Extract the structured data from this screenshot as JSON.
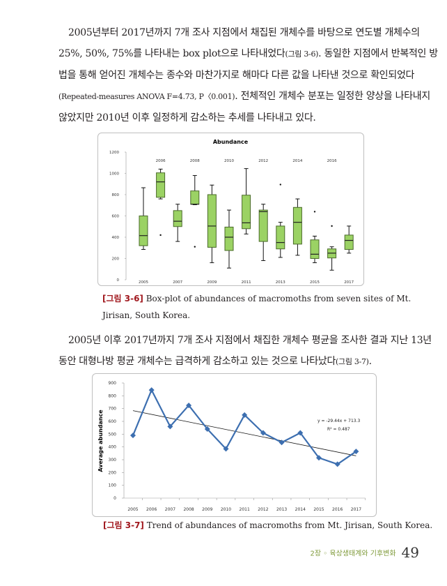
{
  "paragraph1": [
    "2005년부터 2017년까지 7개 조사 지점에서 채집된 개체수를 바탕으로 연도별 개체수의",
    "25%, 50%, 75%를 나타내는 box plot으로 나타내었다",
    "(그림 3-6)",
    ". 동일한 지점에서 반복적인 방",
    "법을 통해 얻어진 개체수는 종수와 마찬가지로 해마다 다른 값을 나타낸 것으로 확인되었다",
    "(Repeated-measures ANOVA F=4.73, P〈0.001)",
    ". 전체적인 개체수 분포는 일정한 양상을 나타내지",
    "않았지만 2010년 이후 일정하게 감소하는 추세를 나타내고 있다."
  ],
  "figure1_caption": {
    "label": "[그림 3-6]",
    "text": " Box-plot of abundances of macromoths from seven sites of Mt.",
    "text2": "Jirisan, South Korea."
  },
  "paragraph2": [
    "2005년 이후 2017년까지 7개 조사 지점에서 채집한 개체수 평균을 조사한 결과 지난 13년",
    "동안 대형나방 평균 개체수는 급격하게 감소하고 있는 것으로 나타났다",
    "(그림 3-7)",
    "."
  ],
  "figure2_caption": {
    "label": "[그림 3-7]",
    "text": " Trend of abundances of macromoths from Mt. Jirisan, South Korea."
  },
  "footer": {
    "chapter": "2장 ◦ 육상생태계와 기후변화",
    "page": "49"
  },
  "colors": {
    "box_fill": "#9bd264",
    "box_stroke": "#4a6a2a",
    "line": "#3d6fb0",
    "caption": "#a0171d"
  },
  "chart_data": [
    {
      "type": "box",
      "title": "Abundance",
      "categories": [
        "2005",
        "2006",
        "2007",
        "2008",
        "2009",
        "2010",
        "2011",
        "2012",
        "2013",
        "2014",
        "2015",
        "2016",
        "2017"
      ],
      "yticks": [
        "0",
        "200",
        "400",
        "600",
        "800",
        "1000",
        "1200"
      ],
      "ylim": [
        0,
        1200
      ],
      "boxes": [
        {
          "min": 285,
          "q1": 320,
          "median": 415,
          "q3": 600,
          "max": 865,
          "outliers": []
        },
        {
          "min": 760,
          "q1": 775,
          "median": 920,
          "q3": 1005,
          "max": 1040,
          "outliers": [
            420
          ]
        },
        {
          "min": 360,
          "q1": 500,
          "median": 550,
          "q3": 650,
          "max": 710,
          "outliers": []
        },
        {
          "min": 705,
          "q1": 710,
          "median": 710,
          "q3": 835,
          "max": 980,
          "outliers": [
            310
          ]
        },
        {
          "min": 160,
          "q1": 305,
          "median": 505,
          "q3": 800,
          "max": 890,
          "outliers": []
        },
        {
          "min": 110,
          "q1": 275,
          "median": 400,
          "q3": 495,
          "max": 655,
          "outliers": []
        },
        {
          "min": 430,
          "q1": 480,
          "median": 535,
          "q3": 795,
          "max": 1045,
          "outliers": []
        },
        {
          "min": 180,
          "q1": 360,
          "median": 640,
          "q3": 655,
          "max": 710,
          "outliers": []
        },
        {
          "min": 210,
          "q1": 290,
          "median": 350,
          "q3": 505,
          "max": 540,
          "outliers": [
            895
          ]
        },
        {
          "min": 230,
          "q1": 335,
          "median": 540,
          "q3": 680,
          "max": 760,
          "outliers": []
        },
        {
          "min": 160,
          "q1": 200,
          "median": 240,
          "q3": 375,
          "max": 410,
          "outliers": [
            640
          ]
        },
        {
          "min": 90,
          "q1": 205,
          "median": 250,
          "q3": 290,
          "max": 310,
          "outliers": [
            505
          ]
        },
        {
          "min": 250,
          "q1": 285,
          "median": 370,
          "q3": 420,
          "max": 505,
          "outliers": []
        }
      ]
    },
    {
      "type": "line",
      "title": "",
      "ylabel": "Average abundance",
      "categories": [
        "2005",
        "2006",
        "2007",
        "2008",
        "2009",
        "2010",
        "2011",
        "2012",
        "2013",
        "2014",
        "2015",
        "2016",
        "2017"
      ],
      "values": [
        490,
        845,
        560,
        725,
        540,
        385,
        650,
        510,
        435,
        510,
        315,
        265,
        365
      ],
      "yticks": [
        "0",
        "100",
        "200",
        "300",
        "400",
        "500",
        "600",
        "700",
        "800",
        "900"
      ],
      "ylim": [
        0,
        900
      ],
      "trendline": {
        "slope": -29.44,
        "intercept": 713.3,
        "equation": "y = -29.44x + 713.3",
        "r2": "R² = 0.487"
      }
    }
  ]
}
